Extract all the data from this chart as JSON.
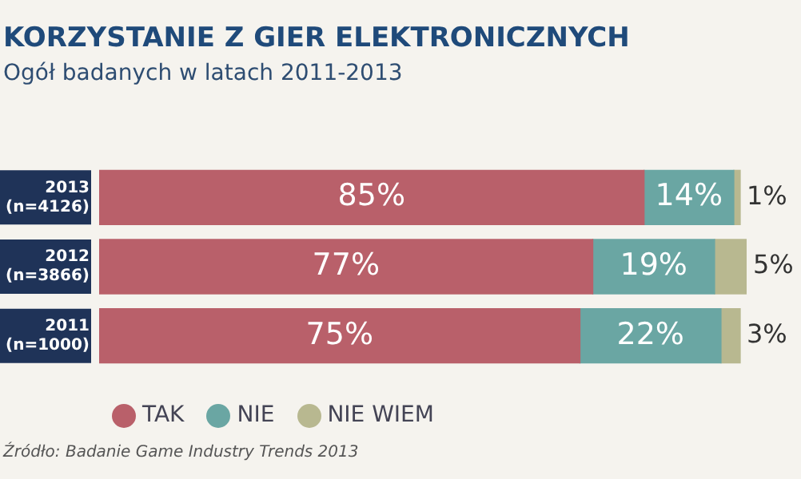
{
  "chart_data": {
    "type": "bar",
    "orientation": "horizontal",
    "stacked": true,
    "title": "KORZYSTANIE Z GIER ELEKTRONICZNYCH",
    "subtitle": "Ogół badanych w latach 2011-2013",
    "categories": [
      "2013 (n=4126)",
      "2012 (n=3866)",
      "2011 (n=1000)"
    ],
    "series": [
      {
        "name": "TAK",
        "color": "#b9606a",
        "values": [
          85,
          77,
          75
        ],
        "value_labels": [
          "85%",
          "77%",
          "75%"
        ]
      },
      {
        "name": "NIE",
        "color": "#6aa6a3",
        "values": [
          14,
          19,
          22
        ],
        "value_labels": [
          "14%",
          "19%",
          "22%"
        ]
      },
      {
        "name": "NIE WIEM",
        "color": "#b8b890",
        "values": [
          1,
          5,
          3
        ],
        "value_labels": [
          "1%",
          "5%",
          "3%"
        ]
      }
    ],
    "xlim": [
      0,
      101
    ],
    "grid": false,
    "legend": "bottom",
    "tick_labels": "y",
    "annotations": [
      "Źródło: Badanie Game Industry Trends 2013"
    ]
  }
}
